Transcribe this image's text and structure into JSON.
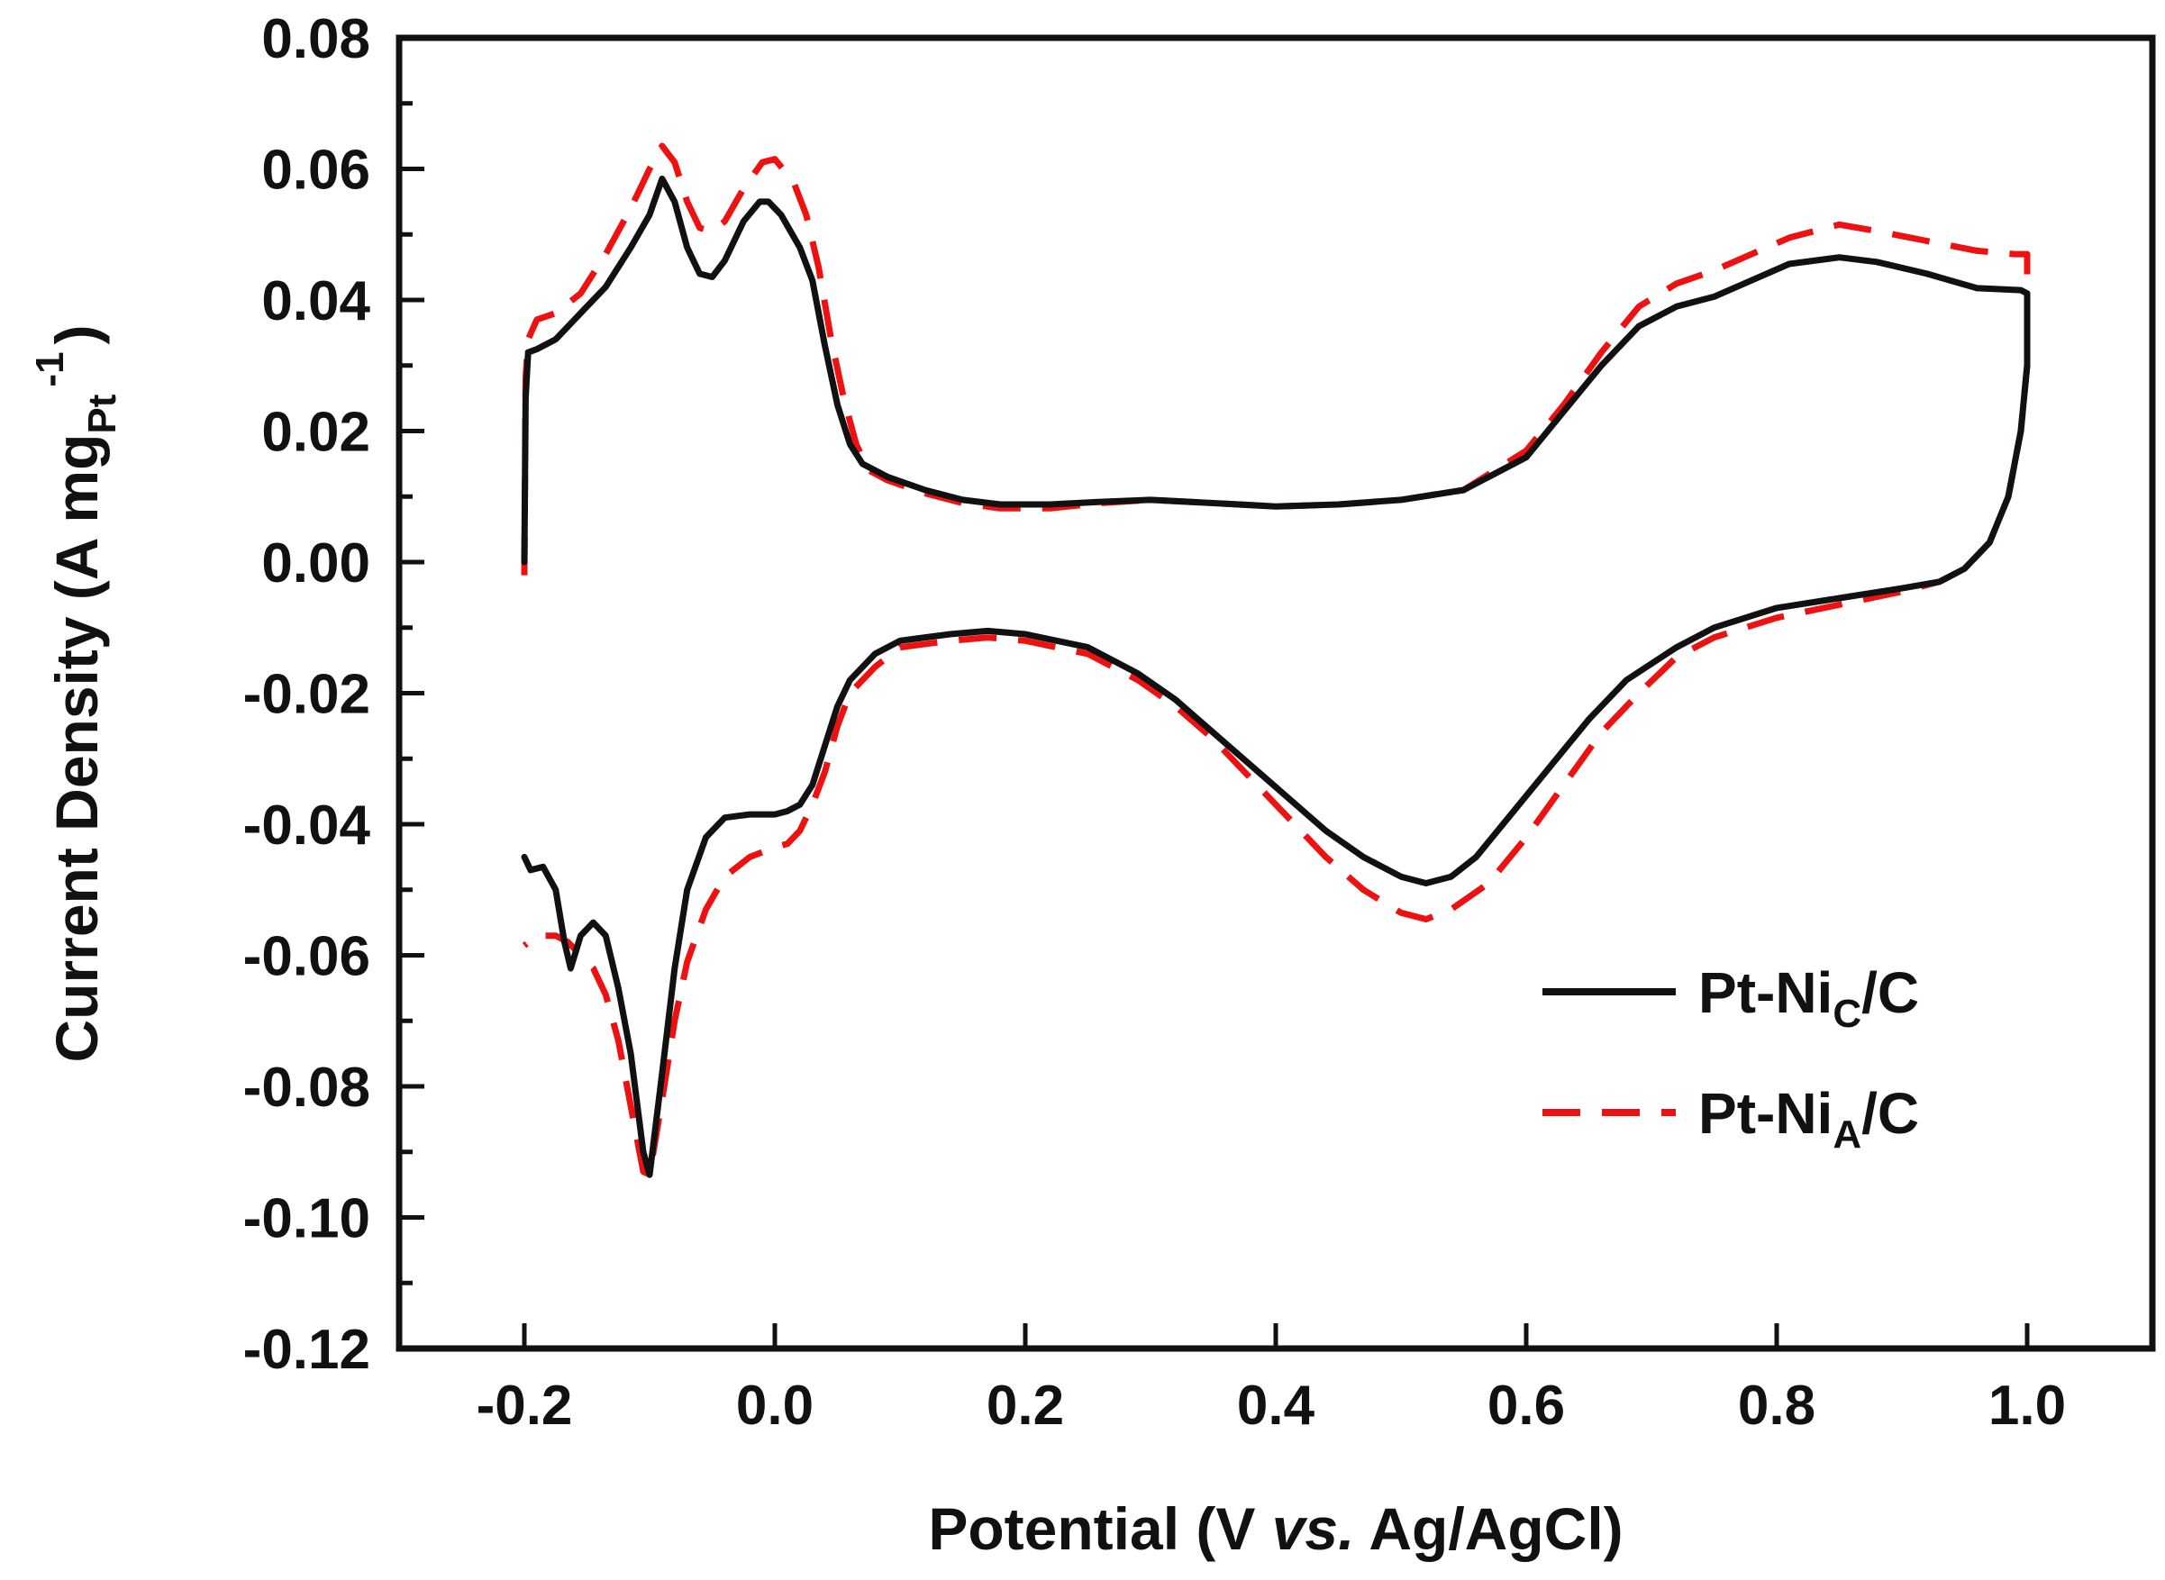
{
  "chart_data": {
    "type": "line",
    "title": "",
    "xlabel": {
      "prefix": "Potential (V ",
      "italic": "vs.",
      "suffix": " Ag/AgCl)"
    },
    "ylabel": {
      "prefix": "Current Density (A mg",
      "sub": "Pt",
      "sup": "-1",
      "suffix": ")"
    },
    "xlim": [
      -0.3,
      1.1
    ],
    "ylim": [
      -0.12,
      0.08
    ],
    "x_ticks": [
      -0.2,
      0.0,
      0.2,
      0.4,
      0.6,
      0.8,
      1.0
    ],
    "x_tick_labels": [
      "-0.2",
      "0.0",
      "0.2",
      "0.4",
      "0.6",
      "0.8",
      "1.0"
    ],
    "y_ticks": [
      0.08,
      0.06,
      0.04,
      0.02,
      0.0,
      -0.02,
      -0.04,
      -0.06,
      -0.08,
      -0.1,
      -0.12
    ],
    "y_tick_labels": [
      "0.08",
      "0.06",
      "0.04",
      "0.02",
      "0.00",
      "-0.02",
      "-0.04",
      "-0.06",
      "-0.08",
      "-0.10",
      "-0.12"
    ],
    "grid": false,
    "legend_position": "bottom-right",
    "series": [
      {
        "name": "Pt-NiC/C",
        "label_main": "Pt-Ni",
        "label_sub": "C",
        "label_suffix": "/C",
        "color": "#111111",
        "style": "solid",
        "anodic": [
          [
            -0.2,
            0.0
          ],
          [
            -0.199,
            0.025
          ],
          [
            -0.197,
            0.032
          ],
          [
            -0.19,
            0.0325
          ],
          [
            -0.175,
            0.034
          ],
          [
            -0.155,
            0.038
          ],
          [
            -0.135,
            0.042
          ],
          [
            -0.115,
            0.048
          ],
          [
            -0.1,
            0.053
          ],
          [
            -0.09,
            0.0585
          ],
          [
            -0.08,
            0.055
          ],
          [
            -0.07,
            0.048
          ],
          [
            -0.06,
            0.044
          ],
          [
            -0.05,
            0.0435
          ],
          [
            -0.04,
            0.046
          ],
          [
            -0.025,
            0.052
          ],
          [
            -0.012,
            0.055
          ],
          [
            -0.005,
            0.055
          ],
          [
            0.005,
            0.053
          ],
          [
            0.02,
            0.048
          ],
          [
            0.03,
            0.043
          ],
          [
            0.04,
            0.033
          ],
          [
            0.05,
            0.024
          ],
          [
            0.06,
            0.018
          ],
          [
            0.07,
            0.015
          ],
          [
            0.09,
            0.013
          ],
          [
            0.12,
            0.011
          ],
          [
            0.15,
            0.0095
          ],
          [
            0.18,
            0.0088
          ],
          [
            0.22,
            0.0088
          ],
          [
            0.26,
            0.0092
          ],
          [
            0.3,
            0.0095
          ],
          [
            0.35,
            0.009
          ],
          [
            0.4,
            0.0085
          ],
          [
            0.45,
            0.0088
          ],
          [
            0.5,
            0.0095
          ],
          [
            0.55,
            0.011
          ],
          [
            0.6,
            0.016
          ],
          [
            0.63,
            0.023
          ],
          [
            0.66,
            0.03
          ],
          [
            0.69,
            0.036
          ],
          [
            0.72,
            0.039
          ],
          [
            0.75,
            0.0405
          ],
          [
            0.78,
            0.043
          ],
          [
            0.81,
            0.0455
          ],
          [
            0.85,
            0.0465
          ],
          [
            0.88,
            0.0458
          ],
          [
            0.92,
            0.044
          ],
          [
            0.96,
            0.0418
          ],
          [
            0.995,
            0.0415
          ],
          [
            1.0,
            0.041
          ]
        ],
        "cathodic": [
          [
            1.0,
            0.041
          ],
          [
            1.0,
            0.03
          ],
          [
            0.995,
            0.02
          ],
          [
            0.985,
            0.01
          ],
          [
            0.97,
            0.003
          ],
          [
            0.95,
            -0.001
          ],
          [
            0.93,
            -0.003
          ],
          [
            0.9,
            -0.004
          ],
          [
            0.85,
            -0.0055
          ],
          [
            0.8,
            -0.007
          ],
          [
            0.75,
            -0.01
          ],
          [
            0.72,
            -0.013
          ],
          [
            0.68,
            -0.018
          ],
          [
            0.65,
            -0.024
          ],
          [
            0.62,
            -0.031
          ],
          [
            0.59,
            -0.038
          ],
          [
            0.56,
            -0.045
          ],
          [
            0.54,
            -0.048
          ],
          [
            0.52,
            -0.049
          ],
          [
            0.5,
            -0.048
          ],
          [
            0.47,
            -0.045
          ],
          [
            0.44,
            -0.041
          ],
          [
            0.41,
            -0.036
          ],
          [
            0.38,
            -0.031
          ],
          [
            0.35,
            -0.026
          ],
          [
            0.32,
            -0.021
          ],
          [
            0.29,
            -0.017
          ],
          [
            0.25,
            -0.013
          ],
          [
            0.2,
            -0.011
          ],
          [
            0.17,
            -0.0105
          ],
          [
            0.14,
            -0.011
          ],
          [
            0.1,
            -0.012
          ],
          [
            0.08,
            -0.014
          ],
          [
            0.06,
            -0.018
          ],
          [
            0.05,
            -0.022
          ],
          [
            0.04,
            -0.028
          ],
          [
            0.03,
            -0.034
          ],
          [
            0.02,
            -0.037
          ],
          [
            0.01,
            -0.038
          ],
          [
            0.0,
            -0.0385
          ],
          [
            -0.02,
            -0.0385
          ],
          [
            -0.04,
            -0.039
          ],
          [
            -0.055,
            -0.042
          ],
          [
            -0.07,
            -0.05
          ],
          [
            -0.08,
            -0.062
          ],
          [
            -0.09,
            -0.078
          ],
          [
            -0.1,
            -0.0935
          ],
          [
            -0.105,
            -0.09
          ],
          [
            -0.115,
            -0.075
          ],
          [
            -0.125,
            -0.065
          ],
          [
            -0.135,
            -0.057
          ],
          [
            -0.145,
            -0.055
          ],
          [
            -0.155,
            -0.057
          ],
          [
            -0.163,
            -0.062
          ],
          [
            -0.168,
            -0.058
          ],
          [
            -0.175,
            -0.05
          ],
          [
            -0.185,
            -0.0465
          ],
          [
            -0.195,
            -0.047
          ],
          [
            -0.2,
            -0.045
          ]
        ]
      },
      {
        "name": "Pt-NiA/C",
        "label_main": "Pt-Ni",
        "label_sub": "A",
        "label_suffix": "/C",
        "color": "#ee1111",
        "style": "dashed",
        "anodic": [
          [
            -0.2,
            -0.002
          ],
          [
            -0.199,
            0.028
          ],
          [
            -0.197,
            0.034
          ],
          [
            -0.19,
            0.037
          ],
          [
            -0.175,
            0.038
          ],
          [
            -0.155,
            0.041
          ],
          [
            -0.135,
            0.047
          ],
          [
            -0.115,
            0.054
          ],
          [
            -0.1,
            0.06
          ],
          [
            -0.09,
            0.0635
          ],
          [
            -0.08,
            0.061
          ],
          [
            -0.07,
            0.055
          ],
          [
            -0.06,
            0.051
          ],
          [
            -0.05,
            0.0505
          ],
          [
            -0.04,
            0.052
          ],
          [
            -0.025,
            0.057
          ],
          [
            -0.01,
            0.061
          ],
          [
            0.0,
            0.0615
          ],
          [
            0.015,
            0.058
          ],
          [
            0.025,
            0.053
          ],
          [
            0.035,
            0.045
          ],
          [
            0.045,
            0.034
          ],
          [
            0.055,
            0.025
          ],
          [
            0.065,
            0.018
          ],
          [
            0.075,
            0.014
          ],
          [
            0.09,
            0.0125
          ],
          [
            0.12,
            0.0105
          ],
          [
            0.15,
            0.009
          ],
          [
            0.18,
            0.0082
          ],
          [
            0.22,
            0.0082
          ],
          [
            0.26,
            0.009
          ],
          [
            0.3,
            0.0095
          ],
          [
            0.35,
            0.009
          ],
          [
            0.4,
            0.0085
          ],
          [
            0.45,
            0.0088
          ],
          [
            0.5,
            0.0095
          ],
          [
            0.55,
            0.011
          ],
          [
            0.6,
            0.017
          ],
          [
            0.63,
            0.024
          ],
          [
            0.66,
            0.032
          ],
          [
            0.69,
            0.039
          ],
          [
            0.72,
            0.0425
          ],
          [
            0.75,
            0.0445
          ],
          [
            0.78,
            0.047
          ],
          [
            0.81,
            0.0495
          ],
          [
            0.85,
            0.0515
          ],
          [
            0.88,
            0.0505
          ],
          [
            0.92,
            0.049
          ],
          [
            0.96,
            0.0475
          ],
          [
            0.99,
            0.047
          ],
          [
            1.0,
            0.047
          ]
        ],
        "cathodic": [
          [
            1.0,
            0.047
          ],
          [
            1.0,
            0.03
          ],
          [
            0.995,
            0.02
          ],
          [
            0.985,
            0.01
          ],
          [
            0.97,
            0.003
          ],
          [
            0.95,
            -0.001
          ],
          [
            0.93,
            -0.003
          ],
          [
            0.9,
            -0.0045
          ],
          [
            0.85,
            -0.0065
          ],
          [
            0.8,
            -0.0085
          ],
          [
            0.75,
            -0.0115
          ],
          [
            0.72,
            -0.0145
          ],
          [
            0.69,
            -0.02
          ],
          [
            0.66,
            -0.026
          ],
          [
            0.63,
            -0.034
          ],
          [
            0.6,
            -0.042
          ],
          [
            0.57,
            -0.049
          ],
          [
            0.54,
            -0.053
          ],
          [
            0.52,
            -0.0545
          ],
          [
            0.5,
            -0.0535
          ],
          [
            0.47,
            -0.05
          ],
          [
            0.44,
            -0.045
          ],
          [
            0.41,
            -0.039
          ],
          [
            0.38,
            -0.033
          ],
          [
            0.35,
            -0.027
          ],
          [
            0.32,
            -0.022
          ],
          [
            0.29,
            -0.018
          ],
          [
            0.25,
            -0.014
          ],
          [
            0.2,
            -0.012
          ],
          [
            0.17,
            -0.0115
          ],
          [
            0.14,
            -0.012
          ],
          [
            0.1,
            -0.013
          ],
          [
            0.08,
            -0.016
          ],
          [
            0.06,
            -0.02
          ],
          [
            0.05,
            -0.025
          ],
          [
            0.04,
            -0.032
          ],
          [
            0.03,
            -0.037
          ],
          [
            0.02,
            -0.041
          ],
          [
            0.01,
            -0.043
          ],
          [
            0.0,
            -0.0435
          ],
          [
            -0.02,
            -0.045
          ],
          [
            -0.04,
            -0.048
          ],
          [
            -0.055,
            -0.053
          ],
          [
            -0.07,
            -0.061
          ],
          [
            -0.08,
            -0.07
          ],
          [
            -0.09,
            -0.082
          ],
          [
            -0.1,
            -0.0935
          ],
          [
            -0.105,
            -0.093
          ],
          [
            -0.115,
            -0.083
          ],
          [
            -0.125,
            -0.073
          ],
          [
            -0.135,
            -0.066
          ],
          [
            -0.145,
            -0.062
          ],
          [
            -0.155,
            -0.06
          ],
          [
            -0.165,
            -0.058
          ],
          [
            -0.175,
            -0.057
          ],
          [
            -0.19,
            -0.057
          ],
          [
            -0.2,
            -0.0585
          ]
        ]
      }
    ]
  }
}
